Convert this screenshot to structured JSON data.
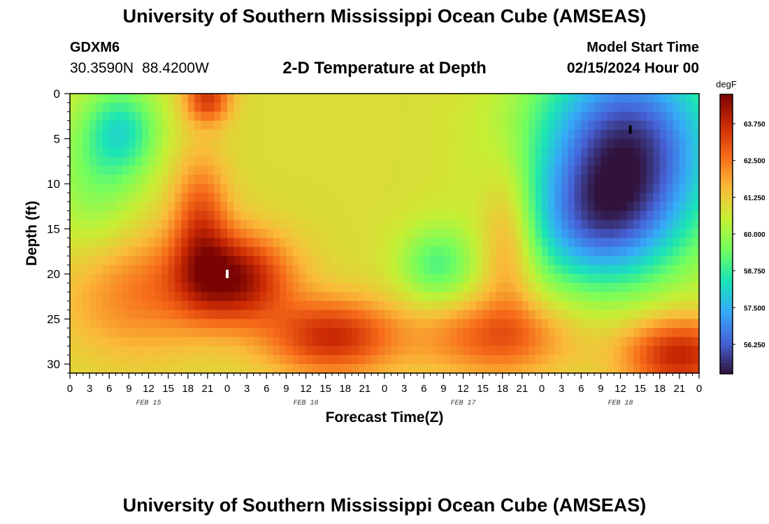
{
  "header": {
    "title_top": "University of Southern Mississippi Ocean Cube (AMSEAS)",
    "title_bottom": "University of Southern Mississippi Ocean Cube (AMSEAS)",
    "station": "GDXM6",
    "latitude": "30.3590N",
    "longitude": "88.4200W",
    "subtitle": "2-D Temperature at Depth",
    "start_label": "Model Start Time",
    "start_value": "02/15/2024 Hour 00"
  },
  "chart_data": {
    "type": "heatmap",
    "title": "2-D Temperature at Depth",
    "xlabel": "Forecast Time(Z)",
    "ylabel": "Depth (ft)",
    "x_range_hours": [
      0,
      96
    ],
    "y_range_ft": [
      0,
      31
    ],
    "x_tick_labels": [
      "0",
      "3",
      "6",
      "9",
      "12",
      "15",
      "18",
      "21",
      "0",
      "3",
      "6",
      "9",
      "12",
      "15",
      "18",
      "21",
      "0",
      "3",
      "6",
      "9",
      "12",
      "15",
      "18",
      "21",
      "0",
      "3",
      "6",
      "9",
      "12",
      "15",
      "18",
      "21",
      "0"
    ],
    "day_labels": [
      "FEB 15",
      "FEB 16",
      "FEB 17",
      "FEB 18"
    ],
    "y_ticks": [
      0,
      5,
      10,
      15,
      20,
      25,
      30
    ],
    "colorbar": {
      "unit": "degF",
      "range": [
        55.25,
        64.75
      ],
      "ticks": [
        "63.750",
        "62.500",
        "61.250",
        "60.000",
        "58.750",
        "57.500",
        "56.250"
      ],
      "tick_values": [
        63.75,
        62.5,
        61.25,
        60.0,
        58.75,
        57.5,
        56.25
      ],
      "colors": [
        "#30123b",
        "#4662d7",
        "#36aaf9",
        "#1ae4b6",
        "#72fe5e",
        "#c7ef34",
        "#fabb39",
        "#f66b19",
        "#cb2a04",
        "#7a0403"
      ]
    },
    "base_temp_degF": 60.9,
    "features": [
      {
        "label": "warm core (max)",
        "t_hours": 25,
        "depth_ft": 20.5,
        "amp": 3.5,
        "sigma_hours": 6,
        "sigma_ft": 3.5
      },
      {
        "label": "warm band",
        "t_hours": 20,
        "depth_ft": 14,
        "amp": 2.0,
        "sigma_hours": 3,
        "sigma_ft": 5
      },
      {
        "label": "surface warm",
        "t_hours": 21,
        "depth_ft": 0.5,
        "amp": 2.5,
        "sigma_hours": 2.5,
        "sigma_ft": 2
      },
      {
        "label": "warm lower",
        "t_hours": 10,
        "depth_ft": 22,
        "amp": 1.5,
        "sigma_hours": 8,
        "sigma_ft": 5
      },
      {
        "label": "warm bottom",
        "t_hours": 40,
        "depth_ft": 27,
        "amp": 2.8,
        "sigma_hours": 7,
        "sigma_ft": 3
      },
      {
        "label": "warm bottom",
        "t_hours": 65,
        "depth_ft": 27,
        "amp": 2.0,
        "sigma_hours": 8,
        "sigma_ft": 3
      },
      {
        "label": "warm bottom",
        "t_hours": 93,
        "depth_ft": 29,
        "amp": 3.0,
        "sigma_hours": 6,
        "sigma_ft": 3
      },
      {
        "label": "mid warm",
        "t_hours": 67,
        "depth_ft": 16,
        "amp": 1.6,
        "sigma_hours": 3,
        "sigma_ft": 6
      },
      {
        "label": "cool surface",
        "t_hours": 8,
        "depth_ft": 4,
        "amp": -2.2,
        "sigma_hours": 4,
        "sigma_ft": 3.5
      },
      {
        "label": "cool left",
        "t_hours": 4,
        "depth_ft": 10,
        "amp": -1.2,
        "sigma_hours": 5,
        "sigma_ft": 6
      },
      {
        "label": "cool mid",
        "t_hours": 56,
        "depth_ft": 19,
        "amp": -1.8,
        "sigma_hours": 4,
        "sigma_ft": 3
      },
      {
        "label": "cool right (min)",
        "t_hours": 85,
        "depth_ft": 6,
        "amp": -5.2,
        "sigma_hours": 10,
        "sigma_ft": 8
      },
      {
        "label": "cool right",
        "t_hours": 80,
        "depth_ft": 15,
        "amp": -2.5,
        "sigma_hours": 8,
        "sigma_ft": 5
      }
    ],
    "markers": [
      {
        "label": "max",
        "t_hours": 24,
        "depth_ft": 20,
        "color": "#ffffff"
      },
      {
        "label": "min",
        "t_hours": 85.5,
        "depth_ft": 4,
        "color": "#000000"
      }
    ]
  }
}
